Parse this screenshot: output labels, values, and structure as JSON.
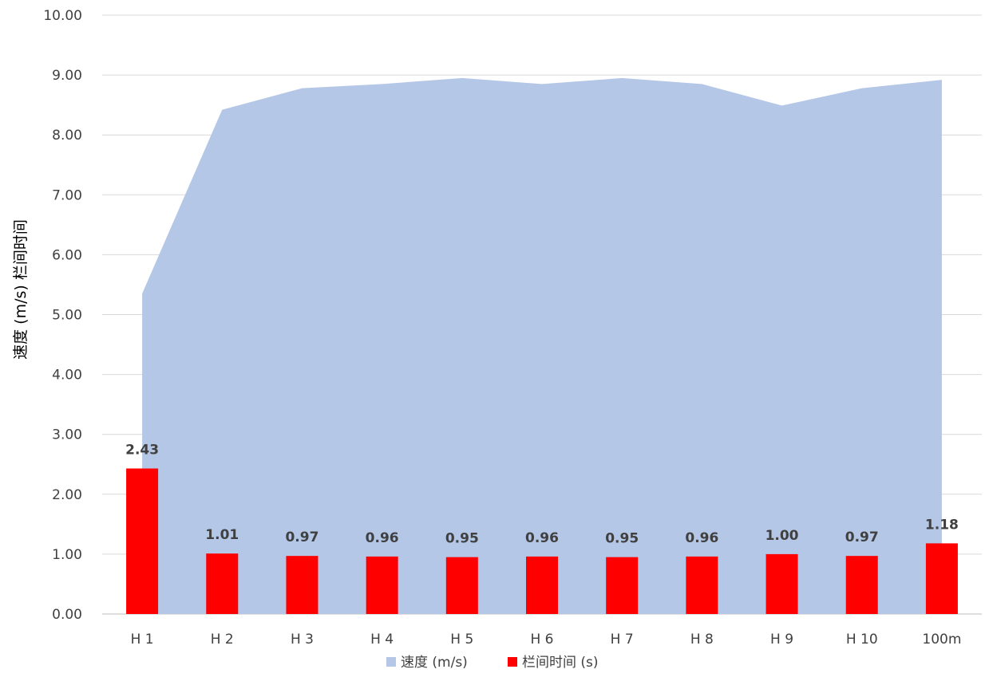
{
  "chart_data": {
    "type": "bar",
    "categories": [
      "H 1",
      "H 2",
      "H 3",
      "H 4",
      "H 5",
      "H 6",
      "H 7",
      "H 8",
      "H 9",
      "H 10",
      "100m"
    ],
    "series": [
      {
        "name": "速度 (m/s)",
        "type": "area",
        "color": "#b4c7e7",
        "values": [
          5.35,
          8.42,
          8.78,
          8.85,
          8.95,
          8.85,
          8.95,
          8.85,
          8.49,
          8.78,
          8.92
        ]
      },
      {
        "name": "栏间时间 (s)",
        "type": "bar",
        "color": "#ff0000",
        "values": [
          2.43,
          1.01,
          0.97,
          0.96,
          0.95,
          0.96,
          0.95,
          0.96,
          1.0,
          0.97,
          1.18
        ],
        "data_labels": [
          "2.43",
          "1.01",
          "0.97",
          "0.96",
          "0.95",
          "0.96",
          "0.95",
          "0.96",
          "1.00",
          "0.97",
          "1.18"
        ]
      }
    ],
    "ylabel": "速度 (m/s) 栏间时间",
    "ylim": [
      0,
      10
    ],
    "yticks": [
      "0.00",
      "1.00",
      "2.00",
      "3.00",
      "4.00",
      "5.00",
      "6.00",
      "7.00",
      "8.00",
      "9.00",
      "10.00"
    ],
    "grid": true,
    "legend_position": "bottom"
  }
}
